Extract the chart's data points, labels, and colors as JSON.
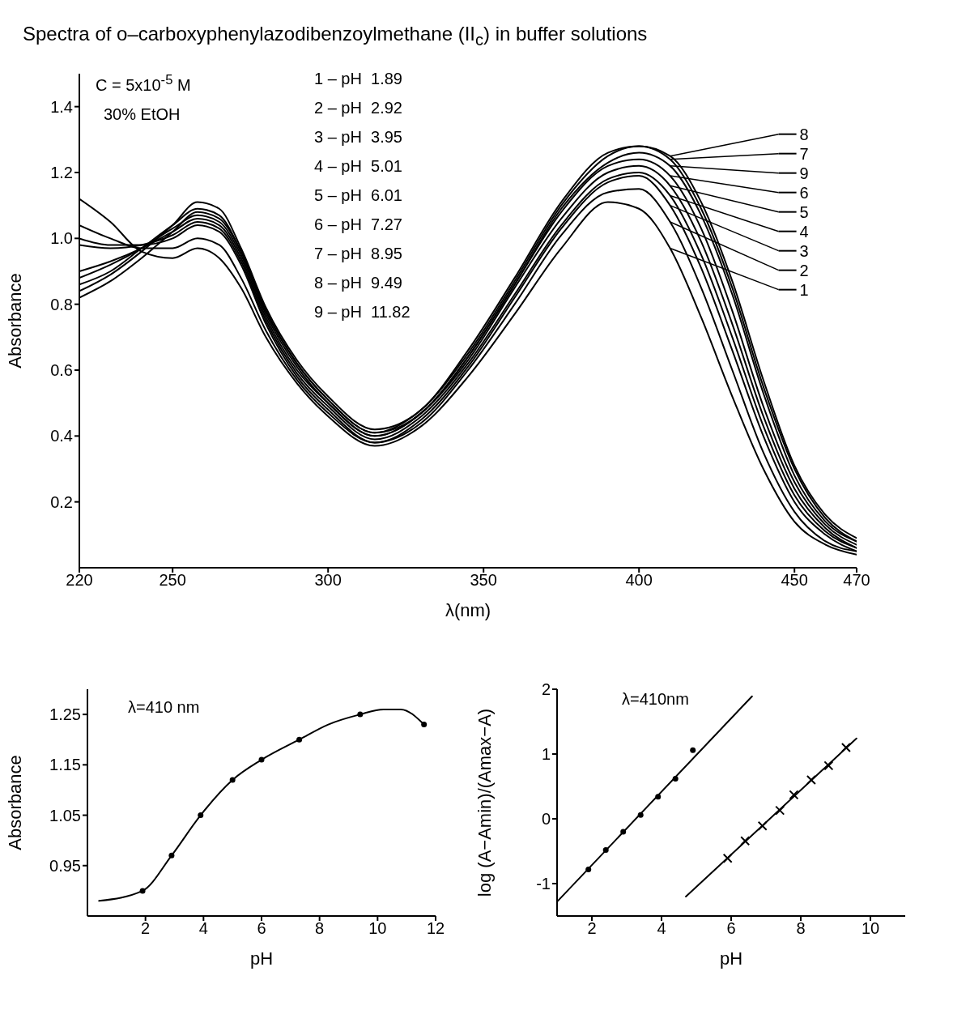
{
  "chart_data": [
    {
      "type": "line",
      "title": "Spectra of o‒carboxyphenylazodibenzoylmethane (II$_{c}$) in buffer solutions",
      "xlabel": "λ(nm)",
      "ylabel": "Absorbance",
      "annotations": [
        "C = 5x10$^{-5}$ M",
        "30% EtOH",
        "1 ‒ pH  1.89",
        "2 ‒ pH  2.92",
        "3 ‒ pH  3.95",
        "4 ‒ pH  5.01",
        "5 ‒ pH  6.01",
        "6 ‒ pH  7.27",
        "7 ‒ pH  8.95",
        "8 ‒ pH  9.49",
        "9 ‒ pH  11.82"
      ],
      "x": [
        220,
        230,
        240,
        250,
        258,
        265,
        272,
        280,
        290,
        300,
        315,
        330,
        345,
        360,
        375,
        390,
        400,
        410,
        420,
        430,
        440,
        450,
        460,
        470
      ],
      "xlim": [
        220,
        470
      ],
      "xticks": [
        220,
        250,
        300,
        350,
        400,
        450,
        470
      ],
      "ylim": [
        0,
        1.5
      ],
      "yticks": [
        0.2,
        0.4,
        0.6,
        0.8,
        {
          "value": 1,
          "label": "1.0"
        },
        1.2,
        1.4
      ],
      "line_style": "solid",
      "legend": "right",
      "series": [
        {
          "name": "1",
          "color": "#000000",
          "values": [
            1.12,
            1.05,
            0.96,
            0.94,
            0.97,
            0.94,
            0.85,
            0.7,
            0.56,
            0.46,
            0.37,
            0.43,
            0.58,
            0.77,
            0.97,
            1.11,
            1.09,
            0.97,
            0.76,
            0.52,
            0.3,
            0.14,
            0.07,
            0.04
          ]
        },
        {
          "name": "2",
          "color": "#000000",
          "values": [
            1.04,
            1.0,
            0.97,
            0.97,
            1.0,
            0.98,
            0.88,
            0.72,
            0.57,
            0.47,
            0.38,
            0.44,
            0.6,
            0.8,
            1.01,
            1.14,
            1.15,
            1.05,
            0.85,
            0.6,
            0.35,
            0.17,
            0.08,
            0.05
          ]
        },
        {
          "name": "3",
          "color": "#000000",
          "values": [
            1.0,
            0.98,
            0.98,
            1.0,
            1.04,
            1.02,
            0.92,
            0.74,
            0.58,
            0.48,
            0.38,
            0.45,
            0.61,
            0.82,
            1.03,
            1.17,
            1.19,
            1.1,
            0.91,
            0.66,
            0.4,
            0.2,
            0.1,
            0.05
          ]
        },
        {
          "name": "4",
          "color": "#000000",
          "values": [
            0.98,
            0.97,
            0.98,
            1.01,
            1.05,
            1.03,
            0.93,
            0.75,
            0.59,
            0.49,
            0.39,
            0.46,
            0.62,
            0.83,
            1.04,
            1.18,
            1.2,
            1.13,
            0.95,
            0.7,
            0.43,
            0.22,
            0.11,
            0.06
          ]
        },
        {
          "name": "5",
          "color": "#000000",
          "values": [
            0.9,
            0.93,
            0.97,
            1.02,
            1.06,
            1.04,
            0.94,
            0.76,
            0.6,
            0.5,
            0.4,
            0.47,
            0.63,
            0.85,
            1.06,
            1.2,
            1.22,
            1.16,
            0.99,
            0.74,
            0.46,
            0.24,
            0.12,
            0.06
          ]
        },
        {
          "name": "6",
          "color": "#000000",
          "values": [
            0.88,
            0.92,
            0.97,
            1.03,
            1.07,
            1.05,
            0.95,
            0.77,
            0.61,
            0.5,
            0.4,
            0.47,
            0.64,
            0.86,
            1.08,
            1.22,
            1.24,
            1.19,
            1.03,
            0.78,
            0.49,
            0.26,
            0.13,
            0.07
          ]
        },
        {
          "name": "7",
          "color": "#000000",
          "values": [
            0.86,
            0.9,
            0.97,
            1.04,
            1.09,
            1.07,
            0.96,
            0.78,
            0.62,
            0.51,
            0.41,
            0.48,
            0.65,
            0.87,
            1.1,
            1.25,
            1.28,
            1.24,
            1.09,
            0.85,
            0.55,
            0.3,
            0.15,
            0.08
          ]
        },
        {
          "name": "8",
          "color": "#000000",
          "values": [
            0.84,
            0.89,
            0.96,
            1.04,
            1.11,
            1.09,
            0.97,
            0.79,
            0.63,
            0.52,
            0.42,
            0.48,
            0.66,
            0.88,
            1.11,
            1.26,
            1.28,
            1.25,
            1.11,
            0.87,
            0.57,
            0.31,
            0.16,
            0.09
          ]
        },
        {
          "name": "9",
          "color": "#000000",
          "values": [
            0.82,
            0.87,
            0.94,
            1.02,
            1.08,
            1.06,
            0.96,
            0.78,
            0.62,
            0.51,
            0.41,
            0.47,
            0.64,
            0.86,
            1.09,
            1.23,
            1.26,
            1.22,
            1.07,
            0.83,
            0.53,
            0.28,
            0.14,
            0.08
          ]
        }
      ]
    },
    {
      "type": "line",
      "xlabel": "pH",
      "ylabel": "Absorbance",
      "annotations": [
        "λ=410 nm"
      ],
      "xlim": [
        0,
        12
      ],
      "xticks": [
        2,
        4,
        6,
        8,
        10,
        12
      ],
      "ylim": [
        0.85,
        1.3
      ],
      "yticks": [
        0.95,
        1.05,
        1.15,
        1.25
      ],
      "line_style": "solid",
      "series": [
        {
          "type": "line",
          "color": "#000000",
          "marker": "none",
          "x": [
            0.4,
            1.9,
            2.9,
            3.9,
            5.0,
            6.0,
            7.3,
            8.3,
            9.4,
            10.2,
            10.8,
            11.6
          ],
          "values": [
            0.88,
            0.9,
            0.97,
            1.05,
            1.12,
            1.16,
            1.2,
            1.23,
            1.25,
            1.26,
            1.26,
            1.23
          ]
        },
        {
          "type": "scatter",
          "color": "#000000",
          "marker": "circle",
          "x": [
            1.9,
            2.9,
            3.9,
            5.0,
            6.0,
            7.3,
            9.4,
            11.6
          ],
          "values": [
            0.9,
            0.97,
            1.05,
            1.12,
            1.16,
            1.2,
            1.25,
            1.23
          ]
        }
      ]
    },
    {
      "type": "line",
      "xlabel": "pH",
      "ylabel": "log (A−Amin)/(Amax−A)",
      "annotations": [
        "λ=410nm"
      ],
      "xlim": [
        1,
        11
      ],
      "xticks": [
        2,
        4,
        6,
        8,
        10
      ],
      "ylim": [
        -1.5,
        2
      ],
      "yticks": [
        -1,
        0,
        1,
        2
      ],
      "line_style": "solid",
      "series": [
        {
          "type": "line",
          "color": "#000000",
          "marker": "none",
          "x": [
            1.0,
            6.6
          ],
          "values": [
            -1.28,
            1.89
          ]
        },
        {
          "type": "line",
          "color": "#000000",
          "marker": "none",
          "x": [
            4.7,
            9.6
          ],
          "values": [
            -1.2,
            1.24
          ]
        },
        {
          "type": "scatter",
          "color": "#000000",
          "marker": "circle",
          "x": [
            1.9,
            2.4,
            2.9,
            3.4,
            3.9,
            4.4,
            4.9
          ],
          "values": [
            -0.78,
            -0.48,
            -0.2,
            0.06,
            0.34,
            0.62,
            1.06
          ]
        },
        {
          "type": "scatter",
          "color": "#000000",
          "marker": "cross",
          "x": [
            5.9,
            6.4,
            6.9,
            7.4,
            7.8,
            8.3,
            8.8,
            9.3
          ],
          "values": [
            -0.61,
            -0.34,
            -0.11,
            0.13,
            0.37,
            0.6,
            0.82,
            1.1
          ]
        }
      ]
    }
  ]
}
